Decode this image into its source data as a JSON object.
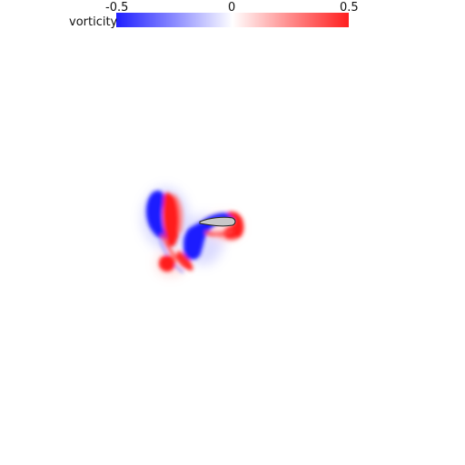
{
  "colorbar": {
    "label": "vorticity",
    "min_label": "-0.5",
    "mid_label": "0",
    "max_label": "0.5",
    "range": [
      -0.5,
      0.5
    ],
    "colors": {
      "negative": "#1f1fff",
      "zero": "#ffffff",
      "positive": "#ff1f1f"
    }
  },
  "body_color": "#c8c8c8"
}
